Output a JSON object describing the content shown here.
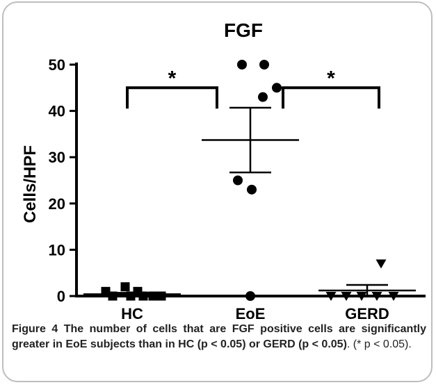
{
  "chart_data": {
    "type": "scatter",
    "title": "FGF",
    "xlabel": "",
    "ylabel": "Cells/HPF",
    "ylim": [
      0,
      50
    ],
    "yticks": [
      "0",
      "10",
      "20",
      "30",
      "40",
      "50"
    ],
    "categories": [
      "HC",
      "EoE",
      "GERD"
    ],
    "series": [
      {
        "category": "HC",
        "marker": "square",
        "values": [
          1,
          0,
          2,
          0,
          1,
          0,
          0,
          0
        ],
        "mean": 0.4,
        "sem": 0.3
      },
      {
        "category": "EoE",
        "marker": "circle",
        "values": [
          50,
          50,
          43,
          45,
          25,
          23,
          0
        ],
        "mean": 33.7,
        "sem": 7.0
      },
      {
        "category": "GERD",
        "marker": "triangle-down",
        "values": [
          7,
          0,
          0,
          0,
          0,
          0
        ],
        "mean": 1.2,
        "sem": 1.2
      }
    ],
    "significance": [
      {
        "from": "HC",
        "to": "EoE",
        "label": "*",
        "y": 45
      },
      {
        "from": "EoE",
        "to": "GERD",
        "label": "*",
        "y": 45
      }
    ],
    "grid": false,
    "colors": {
      "marker": "#000000",
      "axis": "#000000"
    }
  },
  "caption": {
    "label": "Figure 4",
    "text_bold_1": " The number of cells that are FGF positive cells are significantly greater in EoE subjects than in HC (p < 0.05) or GERD (p < 0.05)",
    "text_plain": ". (* p < 0.05)."
  },
  "frame": {
    "border_color": "#bdbdbd"
  }
}
